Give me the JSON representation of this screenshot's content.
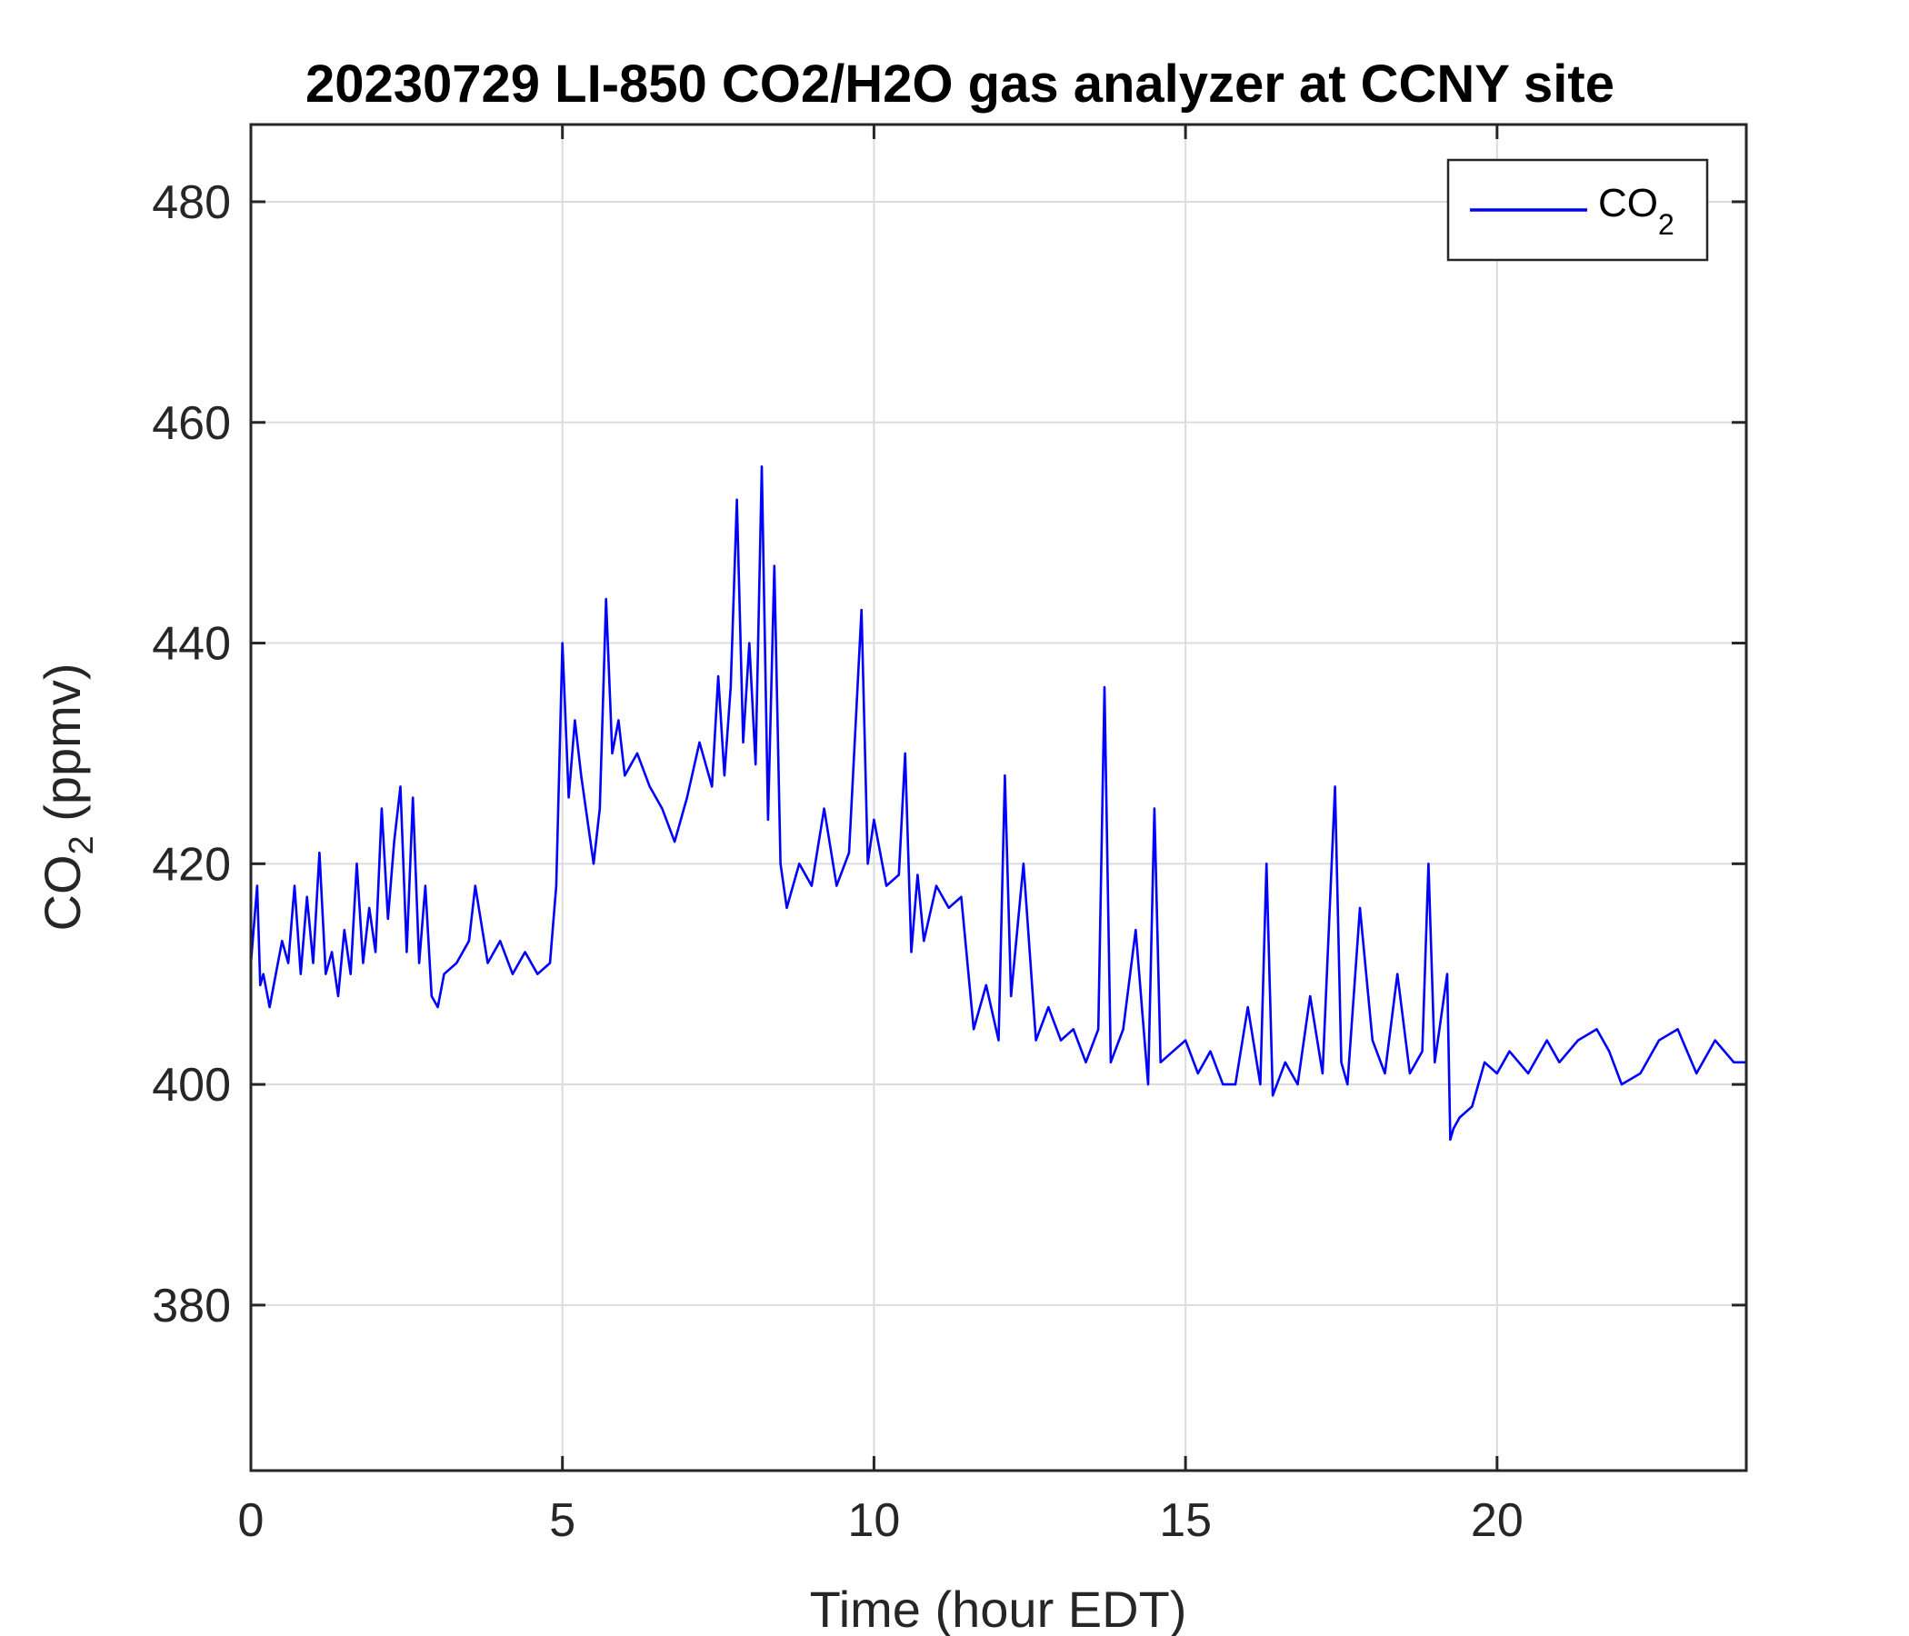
{
  "chart_data": {
    "type": "line",
    "title": "20230729 LI-850 CO2/H2O gas analyzer at CCNY site",
    "xlabel": "Time (hour EDT)",
    "ylabel": {
      "base": "CO",
      "sub": "2",
      "rest": " (ppmv)"
    },
    "xlim": [
      0,
      24
    ],
    "ylim": [
      365,
      487
    ],
    "xticks": [
      0,
      5,
      10,
      15,
      20
    ],
    "yticks": [
      380,
      400,
      420,
      440,
      460,
      480
    ],
    "grid": true,
    "legend_position": "top-right",
    "series": [
      {
        "name": {
          "base": "CO",
          "sub": "2"
        },
        "color": "#0000ff",
        "x": [
          0,
          0.1,
          0.15,
          0.2,
          0.3,
          0.4,
          0.5,
          0.6,
          0.7,
          0.8,
          0.9,
          1.0,
          1.1,
          1.2,
          1.3,
          1.4,
          1.5,
          1.6,
          1.7,
          1.8,
          1.9,
          2.0,
          2.1,
          2.2,
          2.3,
          2.4,
          2.5,
          2.6,
          2.7,
          2.8,
          2.9,
          3.0,
          3.1,
          3.3,
          3.5,
          3.6,
          3.8,
          4.0,
          4.2,
          4.4,
          4.6,
          4.8,
          4.9,
          5.0,
          5.1,
          5.2,
          5.3,
          5.5,
          5.6,
          5.7,
          5.8,
          5.9,
          6.0,
          6.2,
          6.4,
          6.6,
          6.8,
          7.0,
          7.2,
          7.4,
          7.5,
          7.6,
          7.7,
          7.8,
          7.9,
          8.0,
          8.1,
          8.2,
          8.3,
          8.4,
          8.5,
          8.6,
          8.8,
          9.0,
          9.2,
          9.4,
          9.6,
          9.8,
          9.9,
          10.0,
          10.2,
          10.4,
          10.5,
          10.6,
          10.7,
          10.8,
          11.0,
          11.2,
          11.4,
          11.6,
          11.8,
          12.0,
          12.1,
          12.2,
          12.4,
          12.6,
          12.8,
          13.0,
          13.2,
          13.4,
          13.6,
          13.7,
          13.8,
          14.0,
          14.2,
          14.4,
          14.5,
          14.6,
          14.8,
          15.0,
          15.2,
          15.4,
          15.6,
          15.8,
          16.0,
          16.2,
          16.3,
          16.4,
          16.6,
          16.8,
          17.0,
          17.2,
          17.4,
          17.5,
          17.6,
          17.8,
          18.0,
          18.2,
          18.4,
          18.6,
          18.8,
          18.9,
          19.0,
          19.2,
          19.25,
          19.3,
          19.4,
          19.6,
          19.8,
          20.0,
          20.2,
          20.5,
          20.8,
          21.0,
          21.3,
          21.6,
          21.8,
          22.0,
          22.3,
          22.6,
          22.9,
          23.2,
          23.5,
          23.8,
          24.0
        ],
        "y": [
          411,
          418,
          409,
          410,
          407,
          410,
          413,
          411,
          418,
          410,
          417,
          411,
          421,
          410,
          412,
          408,
          414,
          410,
          420,
          411,
          416,
          412,
          425,
          415,
          422,
          427,
          412,
          426,
          411,
          418,
          408,
          407,
          410,
          411,
          413,
          418,
          411,
          413,
          410,
          412,
          410,
          411,
          418,
          440,
          426,
          433,
          428,
          420,
          425,
          444,
          430,
          433,
          428,
          430,
          427,
          425,
          422,
          426,
          431,
          427,
          437,
          428,
          436,
          453,
          431,
          440,
          429,
          456,
          424,
          447,
          420,
          416,
          420,
          418,
          425,
          418,
          421,
          443,
          420,
          424,
          418,
          419,
          430,
          412,
          419,
          413,
          418,
          416,
          417,
          405,
          409,
          404,
          428,
          408,
          420,
          404,
          407,
          404,
          405,
          402,
          405,
          436,
          402,
          405,
          414,
          400,
          425,
          402,
          403,
          404,
          401,
          403,
          400,
          400,
          407,
          400,
          420,
          399,
          402,
          400,
          408,
          401,
          427,
          402,
          400,
          416,
          404,
          401,
          410,
          401,
          403,
          420,
          402,
          410,
          395,
          396,
          397,
          398,
          402,
          401,
          403,
          401,
          404,
          402,
          404,
          405,
          403,
          400,
          401,
          404,
          405,
          401,
          404,
          402,
          402
        ]
      }
    ]
  }
}
